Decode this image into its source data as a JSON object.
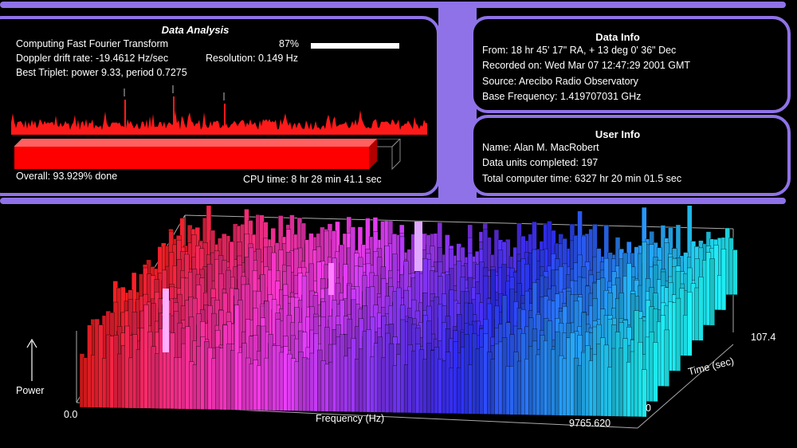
{
  "data_analysis": {
    "title": "Data Analysis",
    "computing_label": "Computing Fast Fourier Transform",
    "percent_text": "87%",
    "percent_value": 0.87,
    "doppler": "Doppler drift rate: -19.4612 Hz/sec",
    "resolution": "Resolution: 0.149 Hz",
    "best_triplet": "Best Triplet: power  9.33, period 0.7275",
    "overall": "Overall: 93.929% done",
    "overall_value": 0.93929,
    "cpu_time": "CPU time: 8 hr 28 min 41.1 sec"
  },
  "data_info": {
    "title": "Data Info",
    "from": "From: 18 hr 45' 17\" RA, + 13 deg  0' 36\" Dec",
    "recorded": "Recorded on: Wed Mar 07 12:47:29 2001 GMT",
    "source": "Source: Arecibo Radio Observatory",
    "base_frequency": "Base Frequency: 1.419707031 GHz"
  },
  "user_info": {
    "title": "User Info",
    "name": "Name: Alan M. MacRobert",
    "units": "Data units completed: 197",
    "total_time": "Total computer time: 6327 hr 20 min 01.5 sec"
  },
  "spectrum": {
    "power_label": "Power",
    "x_label": "Frequency (Hz)",
    "x_min": "0.0",
    "x_max": "9765.620",
    "time_label": "Time (sec)",
    "time_min": "0",
    "time_max": "107.4"
  },
  "colors": {
    "frame": "#8f72e8",
    "peaks": "#ff1a1a",
    "bar": "#ff0000",
    "low_freq": "#ff2020",
    "mid_freq": "#ff40ff",
    "high_freq": "#3030ff",
    "top_freq": "#20ffff"
  }
}
